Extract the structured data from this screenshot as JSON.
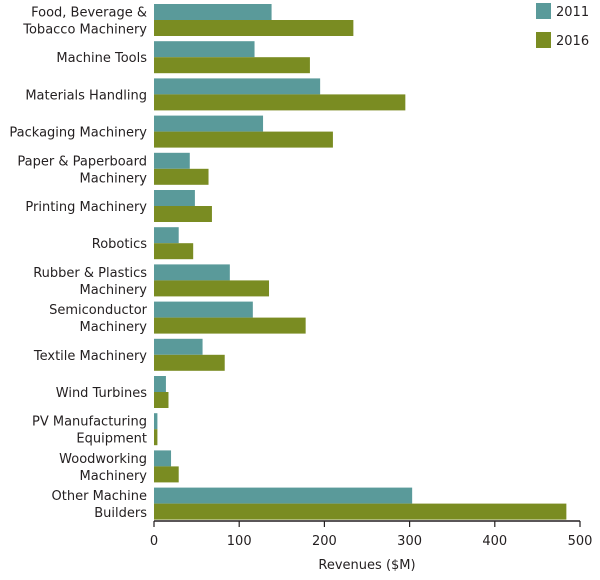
{
  "chart_data": {
    "type": "bar",
    "orientation": "horizontal",
    "title": "",
    "xlabel": "Revenues ($M)",
    "ylabel": "",
    "xlim": [
      0,
      500
    ],
    "xticks": [
      "0",
      "100",
      "200",
      "300",
      "400",
      "500"
    ],
    "grid": false,
    "legend_position": "top-right",
    "categories": [
      [
        "Food, Beverage &",
        "Tobacco Machinery"
      ],
      [
        "Machine Tools"
      ],
      [
        "Materials Handling"
      ],
      [
        "Packaging Machinery"
      ],
      [
        "Paper & Paperboard",
        "Machinery"
      ],
      [
        "Printing Machinery"
      ],
      [
        "Robotics"
      ],
      [
        "Rubber & Plastics",
        "Machinery"
      ],
      [
        "Semiconductor",
        "Machinery"
      ],
      [
        "Textile Machinery"
      ],
      [
        "Wind Turbines"
      ],
      [
        "PV Manufacturing",
        "Equipment"
      ],
      [
        "Woodworking",
        "Machinery"
      ],
      [
        "Other Machine",
        "Builders"
      ]
    ],
    "series": [
      {
        "name": "2011",
        "color": "#5a9a9a",
        "values": [
          138,
          118,
          195,
          128,
          42,
          48,
          29,
          89,
          116,
          57,
          14,
          4,
          20,
          303
        ]
      },
      {
        "name": "2016",
        "color": "#7a8c22",
        "values": [
          234,
          183,
          295,
          210,
          64,
          68,
          46,
          135,
          178,
          83,
          17,
          4,
          29,
          484
        ]
      }
    ]
  }
}
